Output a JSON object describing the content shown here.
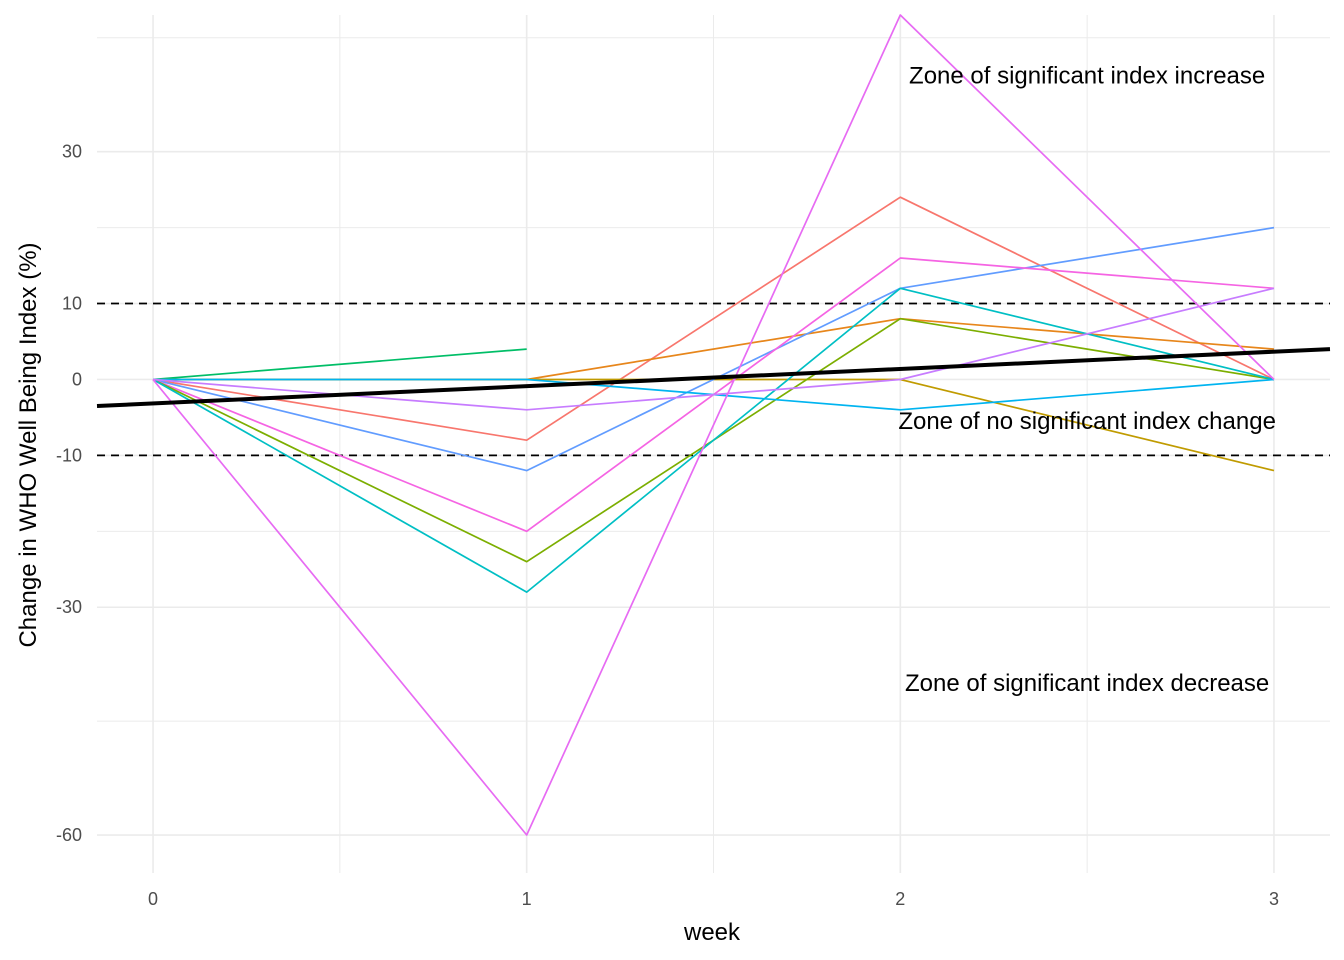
{
  "chart_data": {
    "type": "line",
    "title": "",
    "xlabel": "week",
    "ylabel": "Change in WHO Well Being Index (%)",
    "xlim": [
      -0.15,
      3.15
    ],
    "ylim": [
      -65,
      48
    ],
    "x_ticks": [
      0,
      1,
      2,
      3
    ],
    "x_tick_labels": [
      "0",
      "1",
      "2",
      "3"
    ],
    "x_minor_ticks": [
      0.5,
      1.5,
      2.5
    ],
    "y_ticks": [
      30,
      10,
      0,
      -10,
      -30,
      -60
    ],
    "y_tick_labels": [
      "30",
      "10",
      "0",
      "-10",
      "-30",
      "-60"
    ],
    "y_minor_ticks": [
      45,
      20,
      -20,
      -45
    ],
    "grid": true,
    "reference_lines": [
      {
        "y": 10,
        "style": "dashed",
        "color": "#000000"
      },
      {
        "y": -10,
        "style": "dashed",
        "color": "#000000"
      }
    ],
    "trend_line": {
      "x": [
        -0.15,
        3.15
      ],
      "y": [
        -3.5,
        4.0
      ],
      "color": "#000000"
    },
    "annotations": [
      {
        "text": "Zone of significant index increase",
        "x": 2.5,
        "y": 40
      },
      {
        "text": "Zone of no significant index change",
        "x": 2.5,
        "y": -5.5
      },
      {
        "text": "Zone of significant index decrease",
        "x": 2.5,
        "y": -40
      }
    ],
    "series": [
      {
        "color": "#00BE67",
        "x": [
          0,
          1
        ],
        "y": [
          0,
          4
        ]
      },
      {
        "color": "#F8766D",
        "x": [
          0,
          1,
          2,
          3
        ],
        "y": [
          0,
          -8,
          24,
          0
        ]
      },
      {
        "color": "#E7861B",
        "x": [
          0,
          1,
          2,
          3
        ],
        "y": [
          0,
          0,
          8,
          4
        ]
      },
      {
        "color": "#C09B00",
        "x": [
          0,
          1,
          2,
          3
        ],
        "y": [
          0,
          0,
          0,
          -12
        ]
      },
      {
        "color": "#619CFF",
        "x": [
          0,
          1,
          2,
          3
        ],
        "y": [
          0,
          -12,
          12,
          20
        ]
      },
      {
        "color": "#F564E3",
        "x": [
          0,
          1,
          2,
          3
        ],
        "y": [
          0,
          -20,
          16,
          12
        ]
      },
      {
        "color": "#7CAE00",
        "x": [
          0,
          1,
          2,
          3
        ],
        "y": [
          0,
          -24,
          8,
          0
        ]
      },
      {
        "color": "#00BFC4",
        "x": [
          0,
          1,
          2,
          3
        ],
        "y": [
          0,
          -28,
          12,
          0
        ]
      },
      {
        "color": "#00B4F0",
        "x": [
          0,
          1,
          2,
          3
        ],
        "y": [
          0,
          0,
          -4,
          0
        ]
      },
      {
        "color": "#C77CFF",
        "x": [
          0,
          1,
          2,
          3
        ],
        "y": [
          0,
          -4,
          0,
          12
        ]
      },
      {
        "color": "#E76BF3",
        "x": [
          0,
          1,
          2,
          3
        ],
        "y": [
          0,
          -60,
          48,
          0
        ]
      }
    ]
  }
}
